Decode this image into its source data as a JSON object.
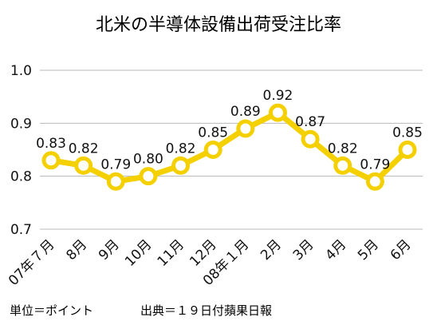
{
  "chart_data": {
    "type": "line",
    "title": "北米の半導体設備出荷受注比率",
    "categories": [
      "07年７月",
      "8月",
      "9月",
      "10月",
      "11月",
      "12月",
      "08年１月",
      "2月",
      "3月",
      "4月",
      "5月",
      "6月"
    ],
    "series": [
      {
        "values": [
          0.83,
          0.82,
          0.79,
          0.8,
          0.82,
          0.85,
          0.89,
          0.92,
          0.87,
          0.82,
          0.79,
          0.85
        ]
      }
    ],
    "data_labels": [
      "0.83",
      "0.82",
      "0.79",
      "0.80",
      "0.82",
      "0.85",
      "0.89",
      "0.92",
      "0.87",
      "0.82",
      "0.79",
      "0.85"
    ],
    "y_ticks": [
      "0.7",
      "0.8",
      "0.9",
      "1.0"
    ],
    "ylim": [
      0.7,
      1.0
    ],
    "grid": true,
    "legend": "none",
    "colors": {
      "line": "#f5d000",
      "marker_fill": "#ffffff",
      "grid": "#b8b8b8",
      "text": "#111111"
    }
  },
  "footer": {
    "unit": "単位＝ポイント",
    "source": "出典＝１９日付蘋果日報"
  }
}
